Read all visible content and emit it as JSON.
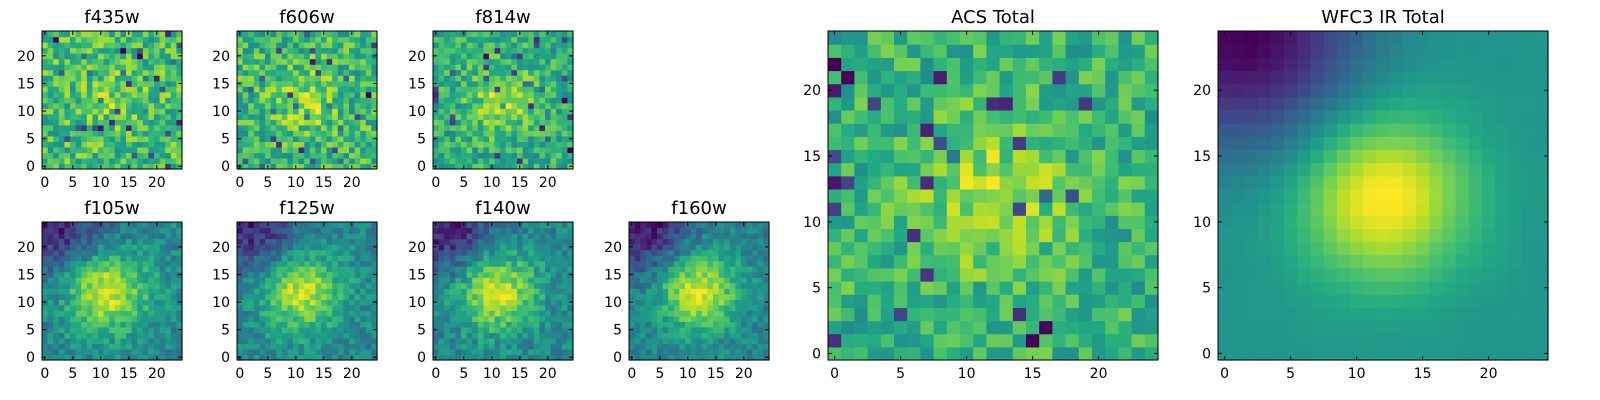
{
  "chart_data": [
    {
      "type": "heatmap",
      "title": "f435w",
      "grid_size": 25,
      "x_ticks": [
        0,
        5,
        10,
        15,
        20
      ],
      "y_ticks": [
        0,
        5,
        10,
        15,
        20
      ],
      "colormap": "viridis",
      "pattern": "noise",
      "seed": 11,
      "center": [
        12,
        12
      ],
      "sigma": 4,
      "amplitude": 0.15,
      "noise": 0.45
    },
    {
      "type": "heatmap",
      "title": "f606w",
      "grid_size": 25,
      "x_ticks": [
        0,
        5,
        10,
        15,
        20
      ],
      "y_ticks": [
        0,
        5,
        10,
        15,
        20
      ],
      "colormap": "viridis",
      "pattern": "noise",
      "seed": 23,
      "center": [
        12,
        12
      ],
      "sigma": 4,
      "amplitude": 0.2,
      "noise": 0.45
    },
    {
      "type": "heatmap",
      "title": "f814w",
      "grid_size": 25,
      "x_ticks": [
        0,
        5,
        10,
        15,
        20
      ],
      "y_ticks": [
        0,
        5,
        10,
        15,
        20
      ],
      "colormap": "viridis",
      "pattern": "noise",
      "seed": 37,
      "center": [
        12,
        12
      ],
      "sigma": 4,
      "amplitude": 0.3,
      "noise": 0.42
    },
    {
      "type": "heatmap",
      "title": "f105w",
      "grid_size": 25,
      "x_ticks": [
        0,
        5,
        10,
        15,
        20
      ],
      "y_ticks": [
        0,
        5,
        10,
        15,
        20
      ],
      "colormap": "viridis",
      "pattern": "blob",
      "seed": 41,
      "center": [
        11,
        12
      ],
      "sigma": 5,
      "amplitude": 0.55,
      "noise": 0.28
    },
    {
      "type": "heatmap",
      "title": "f125w",
      "grid_size": 25,
      "x_ticks": [
        0,
        5,
        10,
        15,
        20
      ],
      "y_ticks": [
        0,
        5,
        10,
        15,
        20
      ],
      "colormap": "viridis",
      "pattern": "blob",
      "seed": 53,
      "center": [
        11,
        12
      ],
      "sigma": 5,
      "amplitude": 0.55,
      "noise": 0.28
    },
    {
      "type": "heatmap",
      "title": "f140w",
      "grid_size": 25,
      "x_ticks": [
        0,
        5,
        10,
        15,
        20
      ],
      "y_ticks": [
        0,
        5,
        10,
        15,
        20
      ],
      "colormap": "viridis",
      "pattern": "blob",
      "seed": 67,
      "center": [
        11,
        12
      ],
      "sigma": 5,
      "amplitude": 0.55,
      "noise": 0.28
    },
    {
      "type": "heatmap",
      "title": "f160w",
      "grid_size": 25,
      "x_ticks": [
        0,
        5,
        10,
        15,
        20
      ],
      "y_ticks": [
        0,
        5,
        10,
        15,
        20
      ],
      "colormap": "viridis",
      "pattern": "blob",
      "seed": 71,
      "center": [
        12,
        12
      ],
      "sigma": 5,
      "amplitude": 0.55,
      "noise": 0.25
    },
    {
      "type": "heatmap",
      "title": "ACS Total",
      "grid_size": 25,
      "x_ticks": [
        0,
        5,
        10,
        15,
        20
      ],
      "y_ticks": [
        0,
        5,
        10,
        15,
        20
      ],
      "colormap": "viridis",
      "pattern": "noise",
      "seed": 83,
      "center": [
        12,
        12
      ],
      "sigma": 4,
      "amplitude": 0.25,
      "noise": 0.35
    },
    {
      "type": "heatmap",
      "title": "WFC3 IR Total",
      "grid_size": 25,
      "x_ticks": [
        0,
        5,
        10,
        15,
        20
      ],
      "y_ticks": [
        0,
        5,
        10,
        15,
        20
      ],
      "colormap": "viridis",
      "pattern": "smooth",
      "seed": 97,
      "center": [
        12,
        12
      ],
      "sigma": 4.5,
      "amplitude": 0.55,
      "noise": 0.05
    }
  ]
}
